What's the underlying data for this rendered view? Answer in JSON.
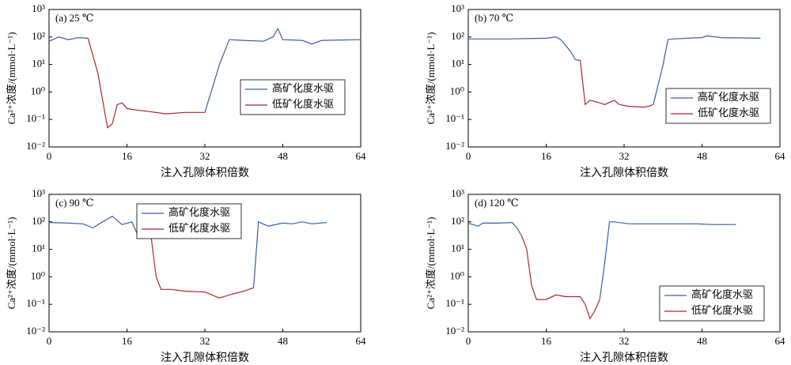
{
  "chart_data": [
    {
      "type": "line",
      "title": "(a) 25 ℃",
      "x_label": "注入孔隙体积倍数",
      "y_label": "Ca²⁺浓度/(mmol·L⁻¹)",
      "log_y": true,
      "legend": "center right",
      "xlim": [
        0,
        64
      ],
      "xticks": [
        0,
        16,
        32,
        48,
        64
      ],
      "ylim": [
        0.01,
        1000
      ],
      "yticks": [
        {
          "value": 0.01,
          "label": "10⁻²"
        },
        {
          "value": 0.1,
          "label": "10⁻¹"
        },
        {
          "value": 1,
          "label": "10⁰"
        },
        {
          "value": 10,
          "label": "10¹"
        },
        {
          "value": 100,
          "label": "10²"
        },
        {
          "value": 1000,
          "label": "10³"
        }
      ],
      "x": [
        0,
        2,
        4,
        6,
        8,
        10,
        12,
        13,
        14,
        15,
        16,
        18,
        20,
        24,
        28,
        32,
        35,
        37,
        40,
        44,
        46,
        47,
        48,
        52,
        54,
        56,
        64
      ],
      "series": [
        {
          "name": "高矿化度水驱",
          "color": "#3b5ca6",
          "values": [
            70,
            100,
            80,
            95,
            90,
            null,
            null,
            null,
            null,
            null,
            null,
            null,
            null,
            null,
            null,
            0.18,
            10,
            80,
            75,
            70,
            100,
            200,
            80,
            75,
            55,
            75,
            80
          ]
        },
        {
          "name": "低矿化度水驱",
          "color": "#a8282c",
          "values": [
            null,
            null,
            null,
            null,
            90,
            5,
            0.05,
            0.07,
            0.35,
            0.4,
            0.25,
            0.22,
            0.2,
            0.16,
            0.18,
            0.18,
            null,
            null,
            null,
            null,
            null,
            null,
            null,
            null,
            null,
            null,
            null
          ]
        }
      ]
    },
    {
      "type": "line",
      "title": "(b) 70 ℃",
      "x_label": "注入孔隙体积倍数",
      "y_label": "Ca²⁺浓度/(mmol·L⁻¹)",
      "log_y": true,
      "legend": "lower right",
      "xlim": [
        0,
        64
      ],
      "xticks": [
        0,
        16,
        32,
        48,
        64
      ],
      "ylim": [
        0.01,
        1000
      ],
      "yticks": [
        {
          "value": 0.01,
          "label": "10⁻²"
        },
        {
          "value": 0.1,
          "label": "10⁻¹"
        },
        {
          "value": 1,
          "label": "10⁰"
        },
        {
          "value": 10,
          "label": "10¹"
        },
        {
          "value": 100,
          "label": "10²"
        },
        {
          "value": 1000,
          "label": "10³"
        }
      ],
      "x": [
        0,
        8,
        16,
        18,
        19,
        21,
        22,
        23,
        24,
        25,
        27,
        28,
        30,
        31,
        33,
        36,
        37,
        38,
        40,
        41,
        42,
        45,
        48,
        49,
        52,
        60
      ],
      "series": [
        {
          "name": "高矿化度水驱",
          "color": "#3b5ca6",
          "values": [
            85,
            85,
            90,
            100,
            80,
            30,
            15,
            14,
            null,
            null,
            null,
            null,
            null,
            null,
            null,
            null,
            null,
            0.35,
            10,
            80,
            85,
            90,
            95,
            110,
            95,
            90
          ]
        },
        {
          "name": "低矿化度水驱",
          "color": "#a8282c",
          "values": [
            null,
            null,
            null,
            null,
            null,
            null,
            null,
            14,
            0.35,
            0.5,
            0.4,
            0.35,
            0.5,
            0.35,
            0.3,
            0.28,
            0.3,
            0.35,
            null,
            null,
            null,
            null,
            null,
            null,
            null,
            null
          ]
        }
      ]
    },
    {
      "type": "line",
      "title": "(c) 90 ℃",
      "x_label": "注入孔隙体积倍数",
      "y_label": "Ca²⁺浓度/(mmol·L⁻¹)",
      "log_y": true,
      "legend": "upper center",
      "xlim": [
        0,
        64
      ],
      "xticks": [
        0,
        16,
        32,
        48,
        64
      ],
      "ylim": [
        0.01,
        1000
      ],
      "yticks": [
        {
          "value": 0.01,
          "label": "10⁻²"
        },
        {
          "value": 0.1,
          "label": "10⁻¹"
        },
        {
          "value": 1,
          "label": "10⁰"
        },
        {
          "value": 10,
          "label": "10¹"
        },
        {
          "value": 100,
          "label": "10²"
        },
        {
          "value": 1000,
          "label": "10³"
        }
      ],
      "x": [
        0,
        4,
        7,
        9,
        11,
        13,
        15,
        17,
        18,
        20,
        21,
        22,
        23,
        25,
        28,
        32,
        34,
        35,
        37,
        40,
        42,
        43,
        45,
        48,
        50,
        52,
        54,
        57
      ],
      "series": [
        {
          "name": "高矿化度水驱",
          "color": "#3b5ca6",
          "values": [
            95,
            90,
            85,
            60,
            100,
            160,
            80,
            100,
            40,
            30,
            25,
            null,
            null,
            null,
            null,
            null,
            null,
            null,
            null,
            null,
            0.4,
            100,
            70,
            90,
            85,
            100,
            85,
            95
          ]
        },
        {
          "name": "低矿化度水驱",
          "color": "#a8282c",
          "values": [
            null,
            null,
            null,
            null,
            null,
            null,
            null,
            null,
            null,
            null,
            25,
            1,
            0.35,
            0.35,
            0.3,
            0.28,
            0.2,
            0.17,
            0.22,
            0.3,
            0.4,
            null,
            null,
            null,
            null,
            null,
            null,
            null
          ]
        }
      ]
    },
    {
      "type": "line",
      "title": "(d) 120 ℃",
      "x_label": "注入孔隙体积倍数",
      "y_label": "Ca²⁺浓度/(mmol·L⁻¹)",
      "log_y": true,
      "legend": "lower center",
      "xlim": [
        0,
        64
      ],
      "xticks": [
        0,
        16,
        32,
        48,
        64
      ],
      "ylim": [
        0.01,
        1000
      ],
      "yticks": [
        {
          "value": 0.01,
          "label": "10⁻²"
        },
        {
          "value": 0.1,
          "label": "10⁻¹"
        },
        {
          "value": 1,
          "label": "10⁰"
        },
        {
          "value": 10,
          "label": "10¹"
        },
        {
          "value": 100,
          "label": "10²"
        },
        {
          "value": 1000,
          "label": "10³"
        }
      ],
      "x": [
        0,
        2,
        3,
        6,
        9,
        10,
        11,
        12,
        13,
        14,
        16,
        18,
        20,
        23,
        24,
        25,
        26,
        27,
        28,
        29,
        30,
        33,
        40,
        47,
        50,
        55
      ],
      "series": [
        {
          "name": "高矿化度水驱",
          "color": "#3b5ca6",
          "values": [
            90,
            70,
            90,
            90,
            95,
            60,
            30,
            null,
            null,
            null,
            null,
            null,
            null,
            null,
            null,
            null,
            null,
            0.15,
            3,
            100,
            100,
            85,
            85,
            85,
            80,
            80
          ]
        },
        {
          "name": "低矿化度水驱",
          "color": "#a8282c",
          "values": [
            null,
            null,
            null,
            null,
            null,
            null,
            30,
            10,
            0.5,
            0.15,
            0.15,
            0.22,
            0.19,
            0.19,
            0.1,
            0.03,
            0.06,
            0.15,
            null,
            null,
            null,
            null,
            null,
            null,
            null,
            null
          ]
        }
      ]
    }
  ]
}
